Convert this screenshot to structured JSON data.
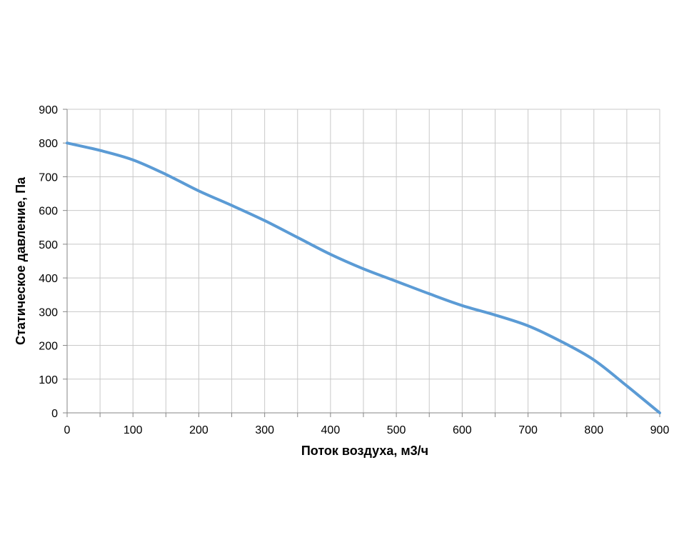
{
  "chart_data": {
    "type": "line",
    "title": "",
    "xlabel": "Поток воздуха,  м3/ч",
    "ylabel": "Статическое давление, Па",
    "xlim": [
      0,
      900
    ],
    "ylim": [
      0,
      900
    ],
    "xticks": [
      0,
      100,
      200,
      300,
      400,
      500,
      600,
      700,
      800,
      900
    ],
    "yticks": [
      0,
      100,
      200,
      300,
      400,
      500,
      600,
      700,
      800,
      900
    ],
    "x_minor_step": 50,
    "grid": true,
    "legend": "none",
    "series": [
      {
        "color": "#5b9bd5",
        "x": [
          0,
          50,
          100,
          150,
          200,
          250,
          300,
          350,
          400,
          450,
          500,
          550,
          600,
          650,
          700,
          750,
          800,
          850,
          900
        ],
        "y": [
          800,
          778,
          750,
          707,
          658,
          615,
          570,
          520,
          470,
          427,
          390,
          353,
          318,
          290,
          258,
          212,
          157,
          80,
          0
        ]
      }
    ],
    "colors": {
      "grid": "#c8c8c8",
      "axis": "#868686"
    }
  }
}
